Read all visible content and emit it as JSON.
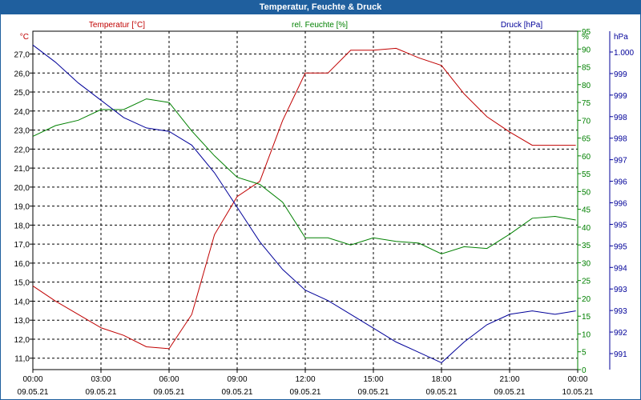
{
  "window": {
    "title": "Temperatur, Feuchte & Druck"
  },
  "colors": {
    "title_bg": "#1f5f9e",
    "temp": "#c00000",
    "hum": "#008000",
    "press": "#000099",
    "grid": "#000000"
  },
  "chart_data": {
    "type": "line",
    "title": "Temperatur, Feuchte & Druck",
    "grid": true,
    "x": [
      "09.05.21 00:00",
      "09.05.21 01:00",
      "09.05.21 02:00",
      "09.05.21 03:00",
      "09.05.21 04:00",
      "09.05.21 05:00",
      "09.05.21 06:00",
      "09.05.21 07:00",
      "09.05.21 08:00",
      "09.05.21 09:00",
      "09.05.21 10:00",
      "09.05.21 11:00",
      "09.05.21 12:00",
      "09.05.21 13:00",
      "09.05.21 14:00",
      "09.05.21 15:00",
      "09.05.21 16:00",
      "09.05.21 17:00",
      "09.05.21 18:00",
      "09.05.21 19:00",
      "09.05.21 20:00",
      "09.05.21 21:00",
      "09.05.21 22:00",
      "09.05.21 23:00",
      "09.05.21 23:55"
    ],
    "x_ticks": [
      {
        "time": "00:00",
        "date": "09.05.21"
      },
      {
        "time": "03:00",
        "date": "09.05.21"
      },
      {
        "time": "06:00",
        "date": "09.05.21"
      },
      {
        "time": "09:00",
        "date": "09.05.21"
      },
      {
        "time": "12:00",
        "date": "09.05.21"
      },
      {
        "time": "15:00",
        "date": "09.05.21"
      },
      {
        "time": "18:00",
        "date": "09.05.21"
      },
      {
        "time": "21:00",
        "date": "09.05.21"
      },
      {
        "time": "00:00",
        "date": "10.05.21"
      }
    ],
    "axes": {
      "left": {
        "unit": "°C",
        "ylim": [
          10.4,
          28.2
        ],
        "ticks": [
          "11,0",
          "12,0",
          "13,0",
          "14,0",
          "15,0",
          "16,0",
          "17,0",
          "18,0",
          "19,0",
          "20,0",
          "21,0",
          "22,0",
          "23,0",
          "24,0",
          "25,0",
          "26,0",
          "27,0"
        ]
      },
      "humidity": {
        "unit": "%",
        "ylim": [
          0,
          95
        ],
        "ticks": [
          "0",
          "5",
          "10",
          "15",
          "20",
          "25",
          "30",
          "35",
          "40",
          "45",
          "50",
          "55",
          "60",
          "65",
          "70",
          "75",
          "80",
          "85",
          "90",
          "95"
        ]
      },
      "pressure": {
        "unit": "hPa",
        "ylim": [
          990.6,
          1000.4
        ],
        "ticks": [
          "991",
          "992",
          "993",
          "993",
          "994",
          "995",
          "995",
          "996",
          "996",
          "997",
          "998",
          "998",
          "999",
          "999",
          "1.000"
        ]
      }
    },
    "series": [
      {
        "name": "Temperatur [°C]",
        "axis": "left",
        "values": [
          14.8,
          14.0,
          13.3,
          12.6,
          12.2,
          11.6,
          11.5,
          13.3,
          17.5,
          19.5,
          20.3,
          23.5,
          26.0,
          26.0,
          27.2,
          27.2,
          27.3,
          26.8,
          26.4,
          24.9,
          23.7,
          22.9,
          22.2,
          22.2,
          22.2
        ]
      },
      {
        "name": "rel. Feuchte [%]",
        "axis": "humidity",
        "values": [
          65.5,
          68.5,
          70.0,
          73.0,
          73.0,
          76.0,
          75.0,
          67.0,
          60.0,
          54.0,
          52.0,
          47.0,
          37.0,
          37.0,
          35.0,
          37.0,
          36.0,
          35.5,
          32.5,
          34.5,
          34.0,
          38.0,
          42.5,
          43.0,
          42.0
        ]
      },
      {
        "name": "Druck [hPa]",
        "axis": "pressure",
        "values": [
          1000.0,
          999.5,
          998.9,
          998.4,
          997.9,
          997.6,
          997.5,
          997.1,
          996.3,
          995.3,
          994.3,
          993.5,
          992.9,
          992.6,
          992.2,
          991.8,
          991.4,
          991.1,
          990.8,
          991.4,
          991.9,
          992.2,
          992.3,
          992.2,
          992.3
        ]
      }
    ]
  }
}
